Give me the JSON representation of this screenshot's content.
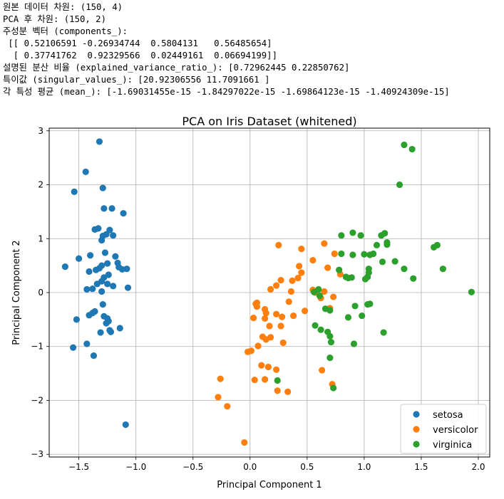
{
  "console_output": [
    "원본 데이터 차원: (150, 4)",
    "PCA 후 차원: (150, 2)",
    "주성분 벡터 (components_):",
    " [[ 0.52106591 -0.26934744  0.5804131   0.56485654]",
    "  [ 0.37741762  0.92329566  0.02449161  0.06694199]]",
    "설명된 분산 비율 (explained_variance_ratio_): [0.72962445 0.22850762]",
    "특이값 (singular_values_): [20.92306556 11.7091661 ]",
    "각 특성 평균 (mean_): [-1.69031455e-15 -1.84297022e-15 -1.69864123e-15 -1.40924309e-15]"
  ],
  "chart_data": {
    "type": "scatter",
    "title": "PCA on Iris Dataset (whitened)",
    "xlabel": "Principal Component 1",
    "ylabel": "Principal Component 2",
    "xlim": [
      -1.76,
      2.1
    ],
    "ylim": [
      -3.05,
      3.05
    ],
    "xticks": [
      -1.5,
      -1.0,
      -0.5,
      0.0,
      0.5,
      1.0,
      1.5,
      2.0
    ],
    "xtick_labels": [
      "−1.5",
      "−1.0",
      "−0.5",
      "0.0",
      "0.5",
      "1.0",
      "1.5",
      "2.0"
    ],
    "yticks": [
      -3,
      -2,
      -1,
      0,
      1,
      2,
      3
    ],
    "ytick_labels": [
      "−3",
      "−2",
      "−1",
      "0",
      "1",
      "2",
      "3"
    ],
    "grid": true,
    "legend_position": "lower-right",
    "series": [
      {
        "name": "setosa",
        "color": "#1f77b4",
        "points": [
          [
            -1.32,
            2.8
          ],
          [
            -1.44,
            2.24
          ],
          [
            -1.54,
            1.87
          ],
          [
            -1.29,
            1.94
          ],
          [
            -1.28,
            1.56
          ],
          [
            -1.21,
            1.56
          ],
          [
            -1.11,
            1.47
          ],
          [
            -1.36,
            1.17
          ],
          [
            -1.33,
            1.19
          ],
          [
            -1.23,
            1.16
          ],
          [
            -1.29,
            1.05
          ],
          [
            -1.26,
            1.08
          ],
          [
            -1.3,
            0.97
          ],
          [
            -1.2,
            1.06
          ],
          [
            -1.27,
            0.74
          ],
          [
            -1.4,
            0.69
          ],
          [
            -1.5,
            0.63
          ],
          [
            -1.62,
            0.48
          ],
          [
            -1.18,
            0.67
          ],
          [
            -1.25,
            0.54
          ],
          [
            -1.3,
            0.5
          ],
          [
            -1.32,
            0.45
          ],
          [
            -1.35,
            0.42
          ],
          [
            -1.15,
            0.47
          ],
          [
            -1.08,
            0.44
          ],
          [
            -1.12,
            0.43
          ],
          [
            -1.16,
            0.55
          ],
          [
            -1.41,
            0.39
          ],
          [
            -1.24,
            0.33
          ],
          [
            -1.28,
            0.28
          ],
          [
            -1.3,
            0.21
          ],
          [
            -1.34,
            0.16
          ],
          [
            -1.25,
            0.16
          ],
          [
            -1.2,
            0.12
          ],
          [
            -1.07,
            0.09
          ],
          [
            -1.43,
            0.06
          ],
          [
            -1.38,
            0.07
          ],
          [
            -1.3,
            0.02
          ],
          [
            -1.29,
            -0.22
          ],
          [
            -1.36,
            -0.35
          ],
          [
            -1.38,
            -0.38
          ],
          [
            -1.41,
            -0.42
          ],
          [
            -1.28,
            -0.44
          ],
          [
            -1.25,
            -0.48
          ],
          [
            -1.24,
            -0.53
          ],
          [
            -1.26,
            -0.57
          ],
          [
            -1.14,
            -0.66
          ],
          [
            -1.23,
            -0.7
          ],
          [
            -1.22,
            -0.73
          ],
          [
            -1.31,
            -0.74
          ],
          [
            -1.52,
            -0.5
          ],
          [
            -1.43,
            -0.95
          ],
          [
            -1.55,
            -1.02
          ],
          [
            -1.37,
            -1.17
          ],
          [
            -1.09,
            -2.45
          ]
        ]
      },
      {
        "name": "versicolor",
        "color": "#ff7f0e",
        "points": [
          [
            0.25,
            0.88
          ],
          [
            0.45,
            0.81
          ],
          [
            0.65,
            0.91
          ],
          [
            0.74,
            0.72
          ],
          [
            0.55,
            0.6
          ],
          [
            0.43,
            0.49
          ],
          [
            0.45,
            0.37
          ],
          [
            0.68,
            0.46
          ],
          [
            0.79,
            0.34
          ],
          [
            0.42,
            0.27
          ],
          [
            0.37,
            0.22
          ],
          [
            0.27,
            0.23
          ],
          [
            0.23,
            0.13
          ],
          [
            0.18,
            0.06
          ],
          [
            0.36,
            0.02
          ],
          [
            0.55,
            0.05
          ],
          [
            0.57,
            0.0
          ],
          [
            0.65,
            0.02
          ],
          [
            0.62,
            -0.1
          ],
          [
            0.73,
            -0.08
          ],
          [
            0.7,
            -0.29
          ],
          [
            0.34,
            -0.17
          ],
          [
            0.06,
            -0.19
          ],
          [
            0.06,
            -0.26
          ],
          [
            0.05,
            -0.21
          ],
          [
            0.13,
            -0.31
          ],
          [
            0.14,
            -0.38
          ],
          [
            0.23,
            -0.4
          ],
          [
            0.28,
            -0.45
          ],
          [
            0.38,
            -0.43
          ],
          [
            0.48,
            -0.34
          ],
          [
            0.13,
            -0.48
          ],
          [
            0.17,
            -0.62
          ],
          [
            0.03,
            -0.47
          ],
          [
            0.27,
            -0.62
          ],
          [
            0.11,
            -0.82
          ],
          [
            0.14,
            -0.87
          ],
          [
            0.18,
            -0.83
          ],
          [
            0.29,
            -0.93
          ],
          [
            0.07,
            -0.99
          ],
          [
            0.01,
            -1.08
          ],
          [
            -0.02,
            -1.1
          ],
          [
            0.16,
            -1.38
          ],
          [
            0.1,
            -1.35
          ],
          [
            0.23,
            -1.43
          ],
          [
            0.04,
            -1.62
          ],
          [
            0.13,
            -1.61
          ],
          [
            0.24,
            -1.82
          ],
          [
            0.33,
            -1.84
          ],
          [
            0.63,
            -1.44
          ],
          [
            0.72,
            -1.7
          ],
          [
            -0.26,
            -1.6
          ],
          [
            -0.28,
            -1.94
          ],
          [
            -0.2,
            -2.11
          ],
          [
            -0.05,
            -2.78
          ]
        ]
      },
      {
        "name": "virginica",
        "color": "#2ca02c",
        "points": [
          [
            1.35,
            2.74
          ],
          [
            1.42,
            2.66
          ],
          [
            1.31,
            2.0
          ],
          [
            0.9,
            1.11
          ],
          [
            0.97,
            1.06
          ],
          [
            0.8,
            1.06
          ],
          [
            1.15,
            1.06
          ],
          [
            1.18,
            1.1
          ],
          [
            1.2,
            0.93
          ],
          [
            1.2,
            0.89
          ],
          [
            1.11,
            0.88
          ],
          [
            1.0,
            0.71
          ],
          [
            1.05,
            0.7
          ],
          [
            1.08,
            0.72
          ],
          [
            0.9,
            0.7
          ],
          [
            0.8,
            0.72
          ],
          [
            1.27,
            0.58
          ],
          [
            1.16,
            0.57
          ],
          [
            1.35,
            0.44
          ],
          [
            1.43,
            0.26
          ],
          [
            1.61,
            0.84
          ],
          [
            1.64,
            0.88
          ],
          [
            1.69,
            0.44
          ],
          [
            1.94,
            0.01
          ],
          [
            0.78,
            0.42
          ],
          [
            0.84,
            0.29
          ],
          [
            0.86,
            0.27
          ],
          [
            0.89,
            0.28
          ],
          [
            1.04,
            0.44
          ],
          [
            1.04,
            0.37
          ],
          [
            1.03,
            0.29
          ],
          [
            1.01,
            0.25
          ],
          [
            0.6,
            0.06
          ],
          [
            0.56,
            0.01
          ],
          [
            0.61,
            -0.06
          ],
          [
            0.66,
            -0.3
          ],
          [
            0.7,
            -0.33
          ],
          [
            0.92,
            -0.25
          ],
          [
            0.98,
            -0.43
          ],
          [
            0.86,
            -0.46
          ],
          [
            1.05,
            -0.21
          ],
          [
            1.03,
            -0.22
          ],
          [
            0.57,
            -0.61
          ],
          [
            0.62,
            -0.69
          ],
          [
            0.68,
            -0.73
          ],
          [
            0.7,
            -0.81
          ],
          [
            0.71,
            -0.92
          ],
          [
            0.91,
            -0.95
          ],
          [
            0.7,
            -1.21
          ],
          [
            0.73,
            -1.77
          ],
          [
            1.17,
            -0.74
          ],
          [
            0.24,
            -1.63
          ]
        ]
      }
    ]
  }
}
